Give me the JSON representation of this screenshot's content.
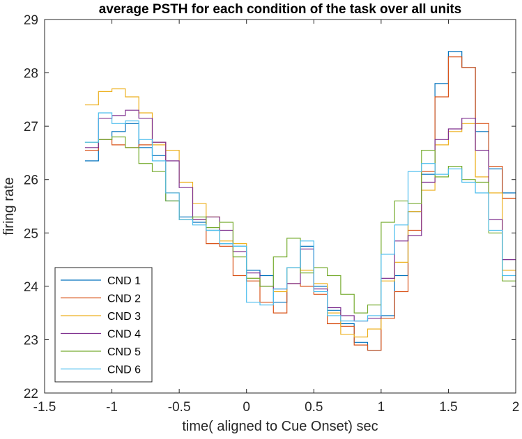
{
  "chart_data": {
    "type": "line",
    "title": "average PSTH for each condition of the task over all units",
    "xlabel": "time( aligned to Cue Onset) sec",
    "ylabel": "firing rate",
    "xlim": [
      -1.5,
      2
    ],
    "ylim": [
      22,
      29
    ],
    "xticks": [
      -1.5,
      -1,
      -0.5,
      0,
      0.5,
      1,
      1.5,
      2
    ],
    "xtick_labels": [
      "-1.5",
      "-1",
      "-0.5",
      "0",
      "0.5",
      "1",
      "1.5",
      "2"
    ],
    "yticks": [
      22,
      23,
      24,
      25,
      26,
      27,
      28,
      29
    ],
    "ytick_labels": [
      "22",
      "23",
      "24",
      "25",
      "26",
      "27",
      "28",
      "29"
    ],
    "grid": false,
    "legend_position": "bottom-left",
    "style": "stairs",
    "x": [
      -1.2,
      -1.1,
      -1.0,
      -0.9,
      -0.8,
      -0.7,
      -0.6,
      -0.5,
      -0.4,
      -0.3,
      -0.2,
      -0.1,
      0.0,
      0.1,
      0.2,
      0.3,
      0.4,
      0.5,
      0.6,
      0.7,
      0.8,
      0.9,
      1.0,
      1.1,
      1.2,
      1.3,
      1.4,
      1.5,
      1.6,
      1.7,
      1.8,
      1.9,
      2.0
    ],
    "series": [
      {
        "name": "CND 1",
        "color": "#0072BD",
        "values": [
          26.35,
          26.75,
          26.9,
          27.05,
          26.6,
          26.45,
          25.6,
          25.3,
          25.2,
          25.05,
          24.8,
          24.75,
          24.3,
          24.2,
          23.7,
          24.35,
          24.75,
          24.0,
          23.55,
          23.3,
          22.95,
          22.8,
          23.45,
          24.2,
          25.4,
          26.1,
          27.8,
          28.4,
          28.1,
          26.9,
          26.2,
          25.75,
          25.75
        ]
      },
      {
        "name": "CND 2",
        "color": "#D95319",
        "values": [
          26.55,
          26.75,
          26.65,
          26.6,
          26.65,
          26.7,
          25.75,
          25.25,
          25.25,
          24.8,
          24.75,
          24.2,
          24.1,
          23.7,
          23.5,
          24.05,
          24.0,
          23.85,
          23.3,
          23.25,
          22.9,
          22.8,
          23.4,
          23.9,
          25.05,
          26.15,
          27.55,
          28.3,
          28.1,
          27.05,
          26.25,
          25.65,
          25.65
        ]
      },
      {
        "name": "CND 3",
        "color": "#EDB120",
        "values": [
          27.4,
          27.65,
          27.7,
          27.55,
          27.25,
          26.65,
          26.55,
          25.95,
          25.55,
          25.3,
          24.85,
          24.8,
          24.15,
          24.0,
          23.9,
          24.35,
          24.3,
          24.05,
          23.5,
          23.1,
          23.05,
          23.2,
          24.1,
          24.45,
          25.4,
          25.8,
          26.65,
          26.9,
          27.05,
          26.05,
          25.75,
          24.3,
          24.3
        ]
      },
      {
        "name": "CND 4",
        "color": "#7E2F8E",
        "values": [
          26.6,
          27.15,
          27.2,
          27.3,
          27.15,
          26.7,
          26.35,
          25.85,
          25.25,
          25.3,
          25.05,
          24.65,
          24.25,
          24.0,
          23.95,
          24.05,
          24.7,
          23.95,
          23.6,
          23.45,
          23.35,
          23.4,
          24.15,
          24.85,
          24.95,
          25.95,
          26.75,
          26.95,
          27.15,
          26.55,
          25.25,
          24.5,
          24.5
        ]
      },
      {
        "name": "CND 5",
        "color": "#77AC30",
        "values": [
          26.7,
          26.75,
          26.8,
          26.6,
          26.3,
          26.15,
          25.6,
          25.25,
          25.3,
          25.1,
          25.2,
          24.55,
          24.15,
          24.0,
          24.55,
          24.9,
          24.25,
          24.35,
          24.2,
          23.85,
          23.5,
          23.65,
          25.2,
          25.6,
          25.55,
          26.55,
          26.05,
          26.25,
          26.0,
          25.95,
          25.0,
          24.1,
          24.1
        ]
      },
      {
        "name": "CND 6",
        "color": "#4DBEEE",
        "values": [
          26.7,
          27.25,
          27.05,
          27.1,
          26.75,
          26.35,
          25.75,
          25.25,
          25.15,
          25.05,
          24.8,
          24.75,
          23.7,
          23.65,
          23.95,
          24.35,
          24.85,
          23.9,
          23.45,
          23.35,
          23.35,
          23.45,
          24.6,
          25.15,
          26.15,
          26.3,
          26.1,
          26.2,
          25.95,
          25.75,
          25.05,
          24.2,
          24.2
        ]
      }
    ]
  }
}
